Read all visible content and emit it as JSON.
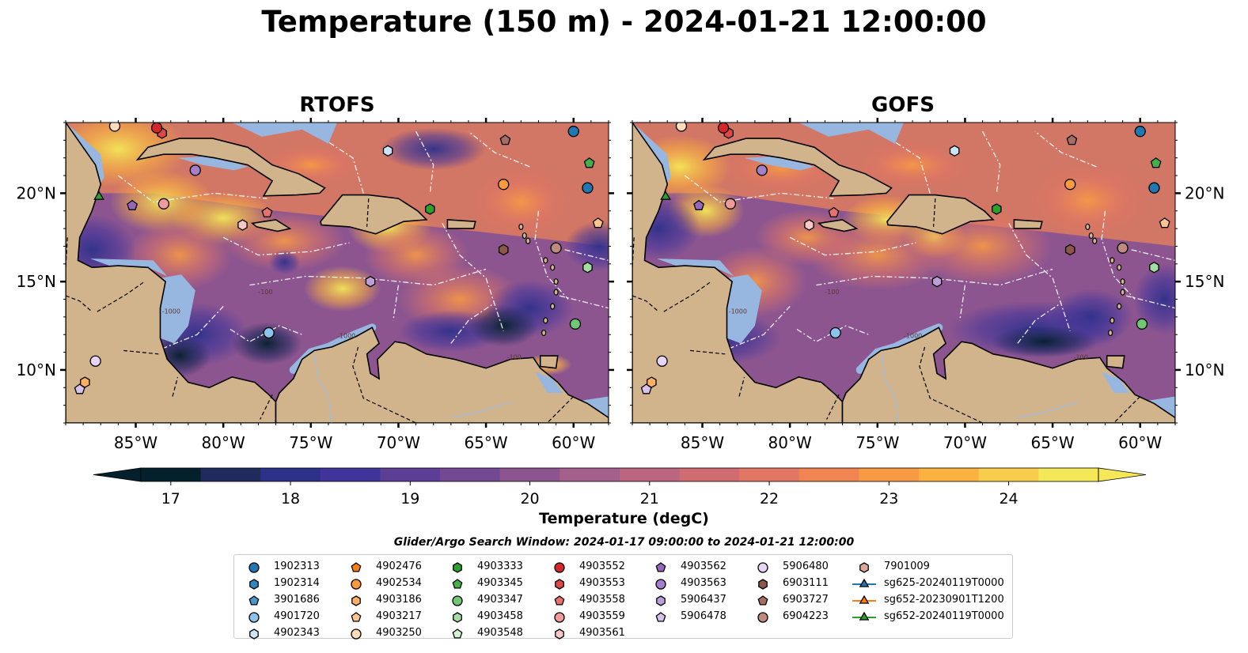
{
  "title": "Temperature (150 m) - 2024-01-21 12:00:00",
  "panels": [
    {
      "title": "RTOFS"
    },
    {
      "title": "GOFS"
    }
  ],
  "axes": {
    "lon_ticks": [
      "85°W",
      "80°W",
      "75°W",
      "70°W",
      "65°W",
      "60°W"
    ],
    "lat_ticks": [
      "20°N",
      "15°N",
      "10°N"
    ],
    "lon_range": [
      -89,
      -58
    ],
    "lat_range": [
      7,
      24
    ]
  },
  "contour_labels": [
    "-100",
    "-1000"
  ],
  "colorbar": {
    "label": "Temperature (degC)",
    "ticks": [
      "17",
      "18",
      "19",
      "20",
      "21",
      "22",
      "23",
      "24"
    ],
    "range": [
      16.75,
      24.75
    ],
    "extend": "both",
    "colors": [
      "#04202c",
      "#202a5c",
      "#2e3189",
      "#40349a",
      "#5c3e97",
      "#744993",
      "#8c5590",
      "#a45f8d",
      "#bb6581",
      "#cf6c72",
      "#e27664",
      "#f08552",
      "#f89a44",
      "#fbb23e",
      "#f8cd4b",
      "#f4e858"
    ]
  },
  "colors": {
    "land": "#d2b48c",
    "shelf_water": "#97b7e0",
    "deep_cold": "#04202c",
    "boundary_dash": "#ffffff"
  },
  "search_window": "Glider/Argo Search Window: 2024-01-17 09:00:00 to 2024-01-21 12:00:00",
  "legend": {
    "columns": [
      [
        {
          "label": "1902313",
          "marker": "circle",
          "color": "#1f77b4"
        },
        {
          "label": "1902314",
          "marker": "hexagon",
          "color": "#2f86c0"
        },
        {
          "label": "3901686",
          "marker": "pentagon",
          "color": "#4a96cc"
        },
        {
          "label": "4901720",
          "marker": "circle",
          "color": "#8cc4ec"
        },
        {
          "label": "4902343",
          "marker": "hexagon",
          "color": "#cce4f8"
        }
      ],
      [
        {
          "label": "4902476",
          "marker": "pentagon",
          "color": "#ff7f0e"
        },
        {
          "label": "4902534",
          "marker": "circle",
          "color": "#fc9a3c"
        },
        {
          "label": "4903186",
          "marker": "hexagon",
          "color": "#fdb063"
        },
        {
          "label": "4903217",
          "marker": "pentagon",
          "color": "#fdc68e"
        },
        {
          "label": "4903250",
          "marker": "circle",
          "color": "#fedcb8"
        }
      ],
      [
        {
          "label": "4903333",
          "marker": "hexagon",
          "color": "#2ca02c"
        },
        {
          "label": "4903345",
          "marker": "pentagon",
          "color": "#46b046"
        },
        {
          "label": "4903347",
          "marker": "circle",
          "color": "#72c872"
        },
        {
          "label": "4903458",
          "marker": "hexagon",
          "color": "#a2dea2"
        },
        {
          "label": "4903548",
          "marker": "pentagon",
          "color": "#d2f2d2"
        }
      ],
      [
        {
          "label": "4903552",
          "marker": "circle",
          "color": "#d62728"
        },
        {
          "label": "4903553",
          "marker": "hexagon",
          "color": "#e04848"
        },
        {
          "label": "4903558",
          "marker": "pentagon",
          "color": "#e87070"
        },
        {
          "label": "4903559",
          "marker": "circle",
          "color": "#f09a9a"
        },
        {
          "label": "4903561",
          "marker": "hexagon",
          "color": "#f8c8c8"
        }
      ],
      [
        {
          "label": "4903562",
          "marker": "pentagon",
          "color": "#9467bd"
        },
        {
          "label": "4903563",
          "marker": "circle",
          "color": "#a580ca"
        },
        {
          "label": "5906437",
          "marker": "hexagon",
          "color": "#bd9ed8"
        },
        {
          "label": "5906478",
          "marker": "pentagon",
          "color": "#d6c2ea"
        }
      ],
      [
        {
          "label": "5906480",
          "marker": "circle",
          "color": "#e8d4f6"
        },
        {
          "label": "6903111",
          "marker": "hexagon",
          "color": "#8c564b"
        },
        {
          "label": "6903727",
          "marker": "pentagon",
          "color": "#a46e62"
        },
        {
          "label": "6904223",
          "marker": "circle",
          "color": "#c08a7e"
        }
      ],
      [
        {
          "label": "7901009",
          "marker": "hexagon",
          "color": "#dca89c"
        },
        {
          "label": "sg625-20240119T0000",
          "marker": "triangle-line",
          "color": "#1f77b4"
        },
        {
          "label": "sg652-20230901T1200",
          "marker": "triangle-line",
          "color": "#ff7f0e"
        },
        {
          "label": "sg652-20240119T0000",
          "marker": "triangle-line",
          "color": "#2ca02c"
        }
      ]
    ]
  },
  "floats": [
    {
      "lon": -86.2,
      "lat": 23.8,
      "marker": "circle",
      "color": "#fedcb8"
    },
    {
      "lon": -83.5,
      "lat": 23.4,
      "marker": "hexagon",
      "color": "#e04848"
    },
    {
      "lon": -83.8,
      "lat": 23.7,
      "marker": "circle",
      "color": "#d62728"
    },
    {
      "lon": -63.9,
      "lat": 23.0,
      "marker": "pentagon",
      "color": "#a46e62"
    },
    {
      "lon": -60.0,
      "lat": 23.5,
      "marker": "circle",
      "color": "#1f77b4"
    },
    {
      "lon": -59.1,
      "lat": 21.7,
      "marker": "pentagon",
      "color": "#46b046"
    },
    {
      "lon": -59.2,
      "lat": 20.3,
      "marker": "circle",
      "color": "#1f77b4"
    },
    {
      "lon": -70.6,
      "lat": 22.4,
      "marker": "hexagon",
      "color": "#cce4f8"
    },
    {
      "lon": -81.6,
      "lat": 21.3,
      "marker": "circle",
      "color": "#a580ca"
    },
    {
      "lon": -87.1,
      "lat": 19.8,
      "marker": "triangle",
      "color": "#2ca02c"
    },
    {
      "lon": -85.2,
      "lat": 19.3,
      "marker": "pentagon",
      "color": "#9467bd"
    },
    {
      "lon": -83.4,
      "lat": 19.4,
      "marker": "circle",
      "color": "#f09a9a"
    },
    {
      "lon": -64.0,
      "lat": 20.5,
      "marker": "circle",
      "color": "#fc9a3c"
    },
    {
      "lon": -68.2,
      "lat": 19.1,
      "marker": "hexagon",
      "color": "#2ca02c"
    },
    {
      "lon": -77.5,
      "lat": 18.9,
      "marker": "pentagon",
      "color": "#e87070"
    },
    {
      "lon": -78.9,
      "lat": 18.2,
      "marker": "hexagon",
      "color": "#f8c8c8"
    },
    {
      "lon": -58.6,
      "lat": 18.3,
      "marker": "pentagon",
      "color": "#fdc68e"
    },
    {
      "lon": -64.0,
      "lat": 16.8,
      "marker": "hexagon",
      "color": "#8c564b"
    },
    {
      "lon": -61.0,
      "lat": 16.9,
      "marker": "circle",
      "color": "#c08a7e"
    },
    {
      "lon": -59.2,
      "lat": 15.8,
      "marker": "hexagon",
      "color": "#a2dea2"
    },
    {
      "lon": -71.6,
      "lat": 15.0,
      "marker": "hexagon",
      "color": "#bd9ed8"
    },
    {
      "lon": -59.9,
      "lat": 12.6,
      "marker": "circle",
      "color": "#72c872"
    },
    {
      "lon": -77.4,
      "lat": 12.1,
      "marker": "circle",
      "color": "#8cc4ec"
    },
    {
      "lon": -87.3,
      "lat": 10.5,
      "marker": "circle",
      "color": "#e8d4f6"
    },
    {
      "lon": -87.9,
      "lat": 9.3,
      "marker": "hexagon",
      "color": "#fdb063"
    },
    {
      "lon": -88.2,
      "lat": 8.9,
      "marker": "pentagon",
      "color": "#d6c2ea"
    }
  ]
}
